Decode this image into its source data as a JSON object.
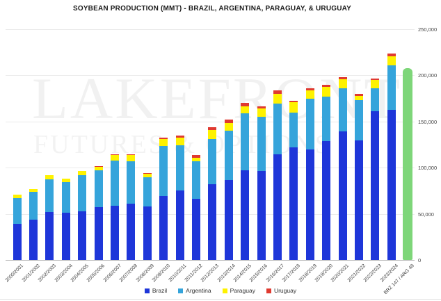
{
  "title": "SOYBEAN PRODUCTION (MMT) - BRAZIL, ARGENTINA, PARAGUAY, & URUGUAY",
  "watermark": {
    "line1": "LAKEFRONT",
    "line2": "FUTURES & OPTIONS"
  },
  "chart_data": {
    "type": "bar",
    "stacked": true,
    "title": "SOYBEAN PRODUCTION (MMT) - BRAZIL, ARGENTINA, PARAGUAY, & URUGUAY",
    "xlabel": "",
    "ylabel": "",
    "ylim": [
      0,
      250000
    ],
    "ytick_step": 50000,
    "ytick_labels": [
      "0",
      "50,000",
      "100,000",
      "150,000",
      "200,000",
      "250,000"
    ],
    "yaxis_side": "right",
    "grid": true,
    "legend_position": "bottom",
    "legend": [
      "Brazil",
      "Argentina",
      "Paraguay",
      "Uruguay"
    ],
    "categories": [
      "2000/2001",
      "2001/2002",
      "2002/2003",
      "2003/2004",
      "2004/2005",
      "2005/2006",
      "2006/2007",
      "2007/2008",
      "2008/2009",
      "2009/2010",
      "2010/2011",
      "2011/2012",
      "2012/2013",
      "2013/2014",
      "2014/2015",
      "2015/2016",
      "2016/2017",
      "2017/2018",
      "2018/2019",
      "2019/2020",
      "2020/2021",
      "2021/2022",
      "2022/2023",
      "2023/2024",
      "BRZ 147 / ARG 48"
    ],
    "series": [
      {
        "name": "Brazil",
        "color": "#1e36d9",
        "values": [
          39500,
          43500,
          52000,
          51000,
          53000,
          57000,
          59000,
          61000,
          57800,
          69000,
          75300,
          66500,
          82000,
          86700,
          97200,
          96500,
          114600,
          122000,
          119700,
          128500,
          139500,
          129500,
          161000,
          163000,
          0
        ]
      },
      {
        "name": "Argentina",
        "color": "#35a4db",
        "values": [
          27800,
          30000,
          35500,
          33000,
          39000,
          40500,
          48800,
          46200,
          32000,
          54500,
          49000,
          40100,
          49300,
          53400,
          61400,
          58800,
          55000,
          37800,
          55300,
          48800,
          46200,
          43900,
          25000,
          48000,
          0
        ]
      },
      {
        "name": "Paraguay",
        "color": "#fef200",
        "values": [
          3500,
          3550,
          4520,
          3910,
          4040,
          3640,
          6200,
          6800,
          3650,
          7460,
          8310,
          4360,
          9370,
          8190,
          8150,
          9220,
          10670,
          11050,
          8520,
          9900,
          9910,
          4200,
          9000,
          10000,
          0
        ]
      },
      {
        "name": "Uruguay",
        "color": "#e03a30",
        "values": [
          30,
          70,
          180,
          380,
          480,
          630,
          780,
          780,
          1000,
          1820,
          1860,
          2650,
          3200,
          3500,
          3110,
          2210,
          3210,
          1330,
          2830,
          2300,
          2300,
          2400,
          1900,
          2800,
          0
        ]
      },
      {
        "name": "BRZ 147 / ARG 48 scenario",
        "color": "#7ed679",
        "rounded": true,
        "in_legend": false,
        "values": [
          0,
          0,
          0,
          0,
          0,
          0,
          0,
          0,
          0,
          0,
          0,
          0,
          0,
          0,
          0,
          0,
          0,
          0,
          0,
          0,
          0,
          0,
          0,
          0,
          208000
        ]
      }
    ]
  }
}
